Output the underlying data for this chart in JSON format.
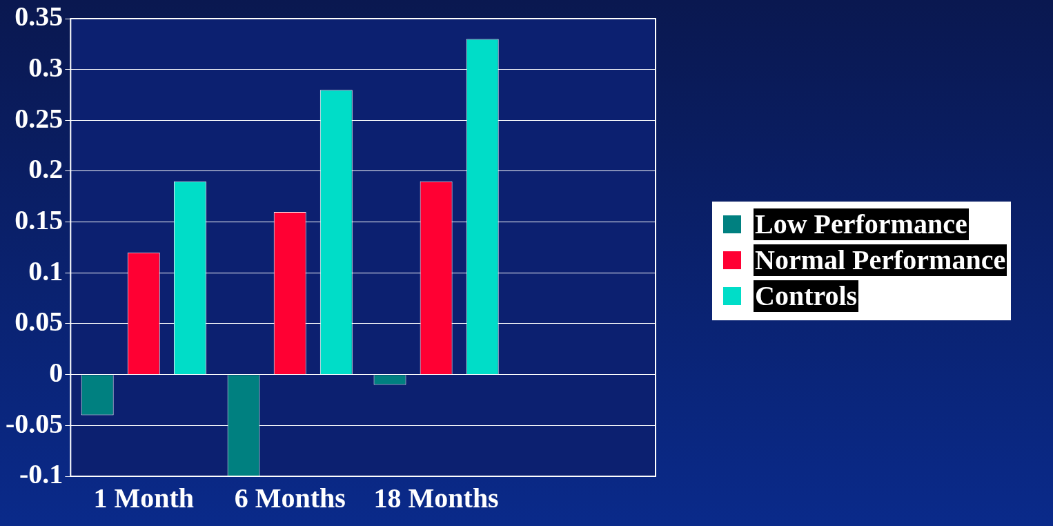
{
  "chart_data": {
    "type": "bar",
    "categories": [
      "1 Month",
      "6 Months",
      "18 Months",
      null
    ],
    "series": [
      {
        "name": "Low Performance",
        "color": "#008080",
        "values": [
          -0.04,
          -0.1,
          -0.01,
          null
        ]
      },
      {
        "name": "Normal Performance",
        "color": "#ff0033",
        "values": [
          0.12,
          0.16,
          0.19,
          null
        ]
      },
      {
        "name": "Controls",
        "color": "#00ddc8",
        "values": [
          0.19,
          0.28,
          0.33,
          null
        ]
      }
    ],
    "ylim": [
      -0.1,
      0.35
    ],
    "yticks": [
      -0.1,
      -0.05,
      0,
      0.05,
      0.1,
      0.15,
      0.2,
      0.25,
      0.3,
      0.35
    ],
    "grid": "y",
    "legend": "right"
  }
}
